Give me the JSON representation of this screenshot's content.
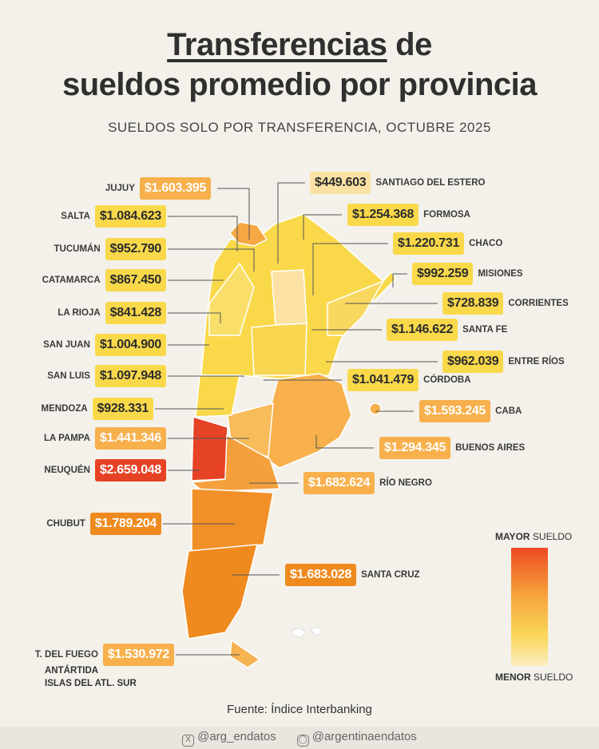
{
  "title": {
    "underlined": "Transferencias",
    "rest1": " de",
    "line2": "sueldos promedio por provincia"
  },
  "subtitle": "SUELDOS SOLO POR TRANSFERENCIA, OCTUBRE 2025",
  "provinces": {
    "jujuy": {
      "name": "JUJUY",
      "value": "$1.603.395"
    },
    "salta": {
      "name": "SALTA",
      "value": "$1.084.623"
    },
    "tucuman": {
      "name": "TUCUMÁN",
      "value": "$952.790"
    },
    "catamarca": {
      "name": "CATAMARCA",
      "value": "$867.450"
    },
    "la_rioja": {
      "name": "LA RIOJA",
      "value": "$841.428"
    },
    "san_juan": {
      "name": "SAN JUAN",
      "value": "$1.004.900"
    },
    "san_luis": {
      "name": "SAN LUIS",
      "value": "$1.097.948"
    },
    "mendoza": {
      "name": "MENDOZA",
      "value": "$928.331"
    },
    "la_pampa": {
      "name": "LA PAMPA",
      "value": "$1.441.346"
    },
    "neuquen": {
      "name": "NEUQUÉN",
      "value": "$2.659.048"
    },
    "chubut": {
      "name": "CHUBUT",
      "value": "$1.789.204"
    },
    "tdf": {
      "name1": "T. DEL FUEGO",
      "name2": "ANTÁRTIDA",
      "name3": "ISLAS DEL ATL. SUR",
      "value": "$1.530.972"
    },
    "santiago": {
      "name": "SANTIAGO DEL ESTERO",
      "value": "$449.603"
    },
    "formosa": {
      "name": "FORMOSA",
      "value": "$1.254.368"
    },
    "chaco": {
      "name": "CHACO",
      "value": "$1.220.731"
    },
    "misiones": {
      "name": "MISIONES",
      "value": "$992.259"
    },
    "corrientes": {
      "name": "CORRIENTES",
      "value": "$728.839"
    },
    "santa_fe": {
      "name": "SANTA FE",
      "value": "$1.146.622"
    },
    "entre_rios": {
      "name": "ENTRE RÍOS",
      "value": "$962.039"
    },
    "cordoba": {
      "name": "CÓRDOBA",
      "value": "$1.041.479"
    },
    "caba": {
      "name": "CABA",
      "value": "$1.593.245"
    },
    "buenos_aires": {
      "name": "BUENOS AIRES",
      "value": "$1.294.345"
    },
    "rio_negro": {
      "name": "RÍO NEGRO",
      "value": "$1.682.624"
    },
    "santa_cruz": {
      "name": "SANTA CRUZ",
      "value": "$1.683.028"
    }
  },
  "legend": {
    "top_bold": "MAYOR",
    "top_rest": " SUELDO",
    "bottom_bold": "MENOR",
    "bottom_rest": " SUELDO",
    "colors": [
      "#e64226",
      "#f6a33a",
      "#f9d75a",
      "#fbedc0"
    ]
  },
  "source": "Fuente: Índice Interbanking",
  "footer": {
    "x_handle": "@arg_endatos",
    "ig_handle": "@argentinaendatos"
  }
}
